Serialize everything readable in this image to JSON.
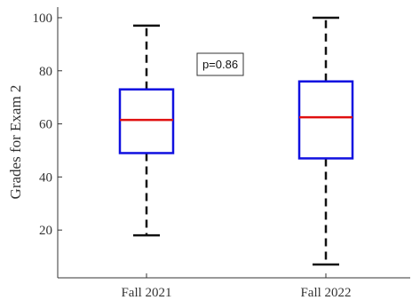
{
  "chart_data": {
    "type": "box",
    "title": "",
    "xlabel": "",
    "ylabel": "Grades for Exam 2",
    "ylim": [
      2,
      104
    ],
    "yticks": [
      20,
      40,
      60,
      80,
      100
    ],
    "categories": [
      "Fall 2021",
      "Fall 2022"
    ],
    "boxes": [
      {
        "category": "Fall 2021",
        "whisker_low": 18,
        "q1": 49,
        "median": 61.5,
        "q3": 73,
        "whisker_high": 97
      },
      {
        "category": "Fall 2022",
        "whisker_low": 7,
        "q1": 47,
        "median": 62.5,
        "q3": 76,
        "whisker_high": 100
      }
    ],
    "annotation": "p=0.86",
    "grid": false,
    "colors": {
      "box": "#1010e0",
      "median": "#e01010",
      "whisker": "#111111",
      "axis": "#333333"
    }
  }
}
